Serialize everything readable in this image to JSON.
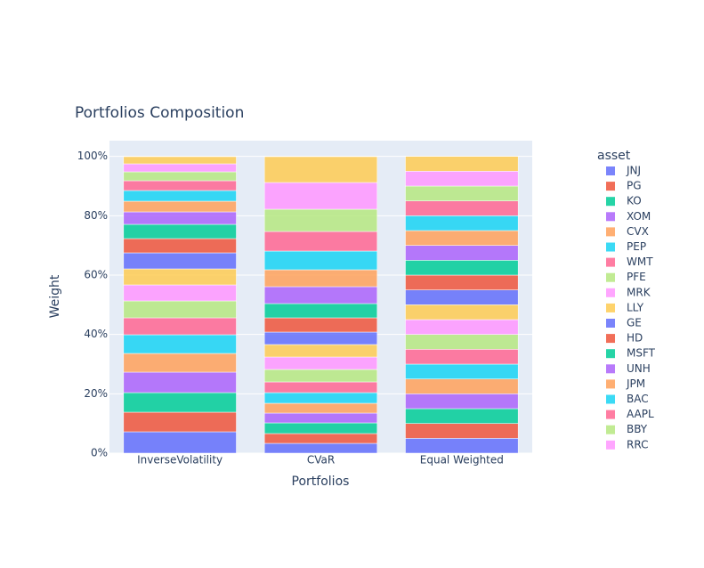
{
  "chart_data": {
    "type": "stacked_bar",
    "title": "Portfolios Composition",
    "x_label": "Portfolios",
    "y_label": "Weight",
    "legend_title": "asset",
    "categories": [
      "InverseVolatility",
      "CVaR",
      "Equal Weighted"
    ],
    "ylim": [
      0,
      105.3
    ],
    "yticks": [
      {
        "value": 0,
        "label": "0%"
      },
      {
        "value": 20,
        "label": "20%"
      },
      {
        "value": 40,
        "label": "40%"
      },
      {
        "value": 60,
        "label": "60%"
      },
      {
        "value": 80,
        "label": "80%"
      },
      {
        "value": 100,
        "label": "100%"
      }
    ],
    "grid": true,
    "legend": "right",
    "series": [
      {
        "name": "JNJ",
        "color": "#636EFA",
        "values": [
          7.2,
          3.3,
          5
        ]
      },
      {
        "name": "PG",
        "color": "#EF553B",
        "values": [
          6.6,
          3.3,
          5
        ]
      },
      {
        "name": "KO",
        "color": "#00CC96",
        "values": [
          6.6,
          3.6,
          5
        ]
      },
      {
        "name": "XOM",
        "color": "#AB63FA",
        "values": [
          6.9,
          3.3,
          5
        ]
      },
      {
        "name": "CVX",
        "color": "#FFA15A",
        "values": [
          6.3,
          3.3,
          5
        ]
      },
      {
        "name": "PEP",
        "color": "#19D3F3",
        "values": [
          6.3,
          3.6,
          5
        ]
      },
      {
        "name": "WMT",
        "color": "#FF6692",
        "values": [
          5.7,
          3.6,
          5
        ]
      },
      {
        "name": "PFE",
        "color": "#B6E880",
        "values": [
          5.7,
          4.2,
          5
        ]
      },
      {
        "name": "MRK",
        "color": "#FF97FF",
        "values": [
          5.4,
          4.2,
          5
        ]
      },
      {
        "name": "LLY",
        "color": "#FECB52",
        "values": [
          5.4,
          4.2,
          5
        ]
      },
      {
        "name": "GE",
        "color": "#636EFA",
        "values": [
          5.4,
          4.2,
          5
        ]
      },
      {
        "name": "HD",
        "color": "#EF553B",
        "values": [
          4.8,
          4.8,
          5
        ]
      },
      {
        "name": "MSFT",
        "color": "#00CC96",
        "values": [
          4.8,
          4.8,
          5
        ]
      },
      {
        "name": "UNH",
        "color": "#AB63FA",
        "values": [
          4.2,
          5.7,
          5
        ]
      },
      {
        "name": "JPM",
        "color": "#FFA15A",
        "values": [
          3.6,
          5.7,
          5
        ]
      },
      {
        "name": "BAC",
        "color": "#19D3F3",
        "values": [
          3.6,
          6.3,
          5
        ]
      },
      {
        "name": "AAPL",
        "color": "#FF6692",
        "values": [
          3.3,
          6.6,
          5
        ]
      },
      {
        "name": "BBY",
        "color": "#B6E880",
        "values": [
          3.0,
          7.5,
          5
        ]
      },
      {
        "name": "RRC",
        "color": "#FF97FF",
        "values": [
          2.7,
          9.0,
          5
        ]
      },
      {
        "name": null,
        "color": "#FECB52",
        "values": [
          2.4,
          8.7,
          5
        ]
      }
    ]
  }
}
